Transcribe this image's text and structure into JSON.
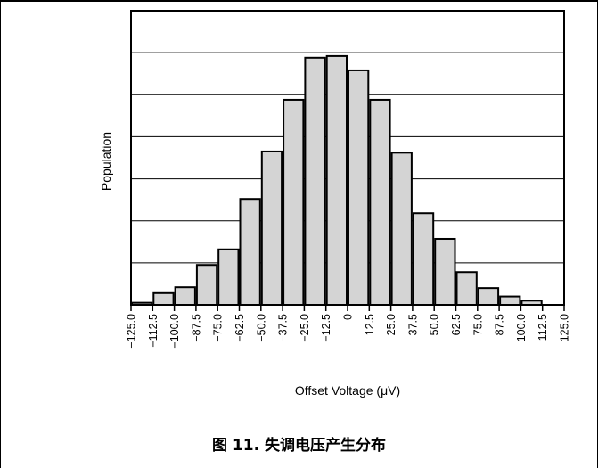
{
  "caption": "图 11. 失调电压产生分布",
  "chart_data": {
    "type": "bar",
    "title": "",
    "xlabel": "Offset Voltage (μV)",
    "ylabel": "Population",
    "xlim": [
      -125.0,
      125.0
    ],
    "ylim": [
      0,
      7
    ],
    "bin_width": 12.5,
    "x_tick_labels": [
      "-125.0",
      "-112.5",
      "-100.0",
      "-87.5",
      "-75.0",
      "-62.5",
      "-50.0",
      "-37.5",
      "-25.0",
      "-12.5",
      "0",
      "12.5",
      "25.0",
      "37.5",
      "50.0",
      "62.5",
      "75.0",
      "87.5",
      "100.0",
      "112.5",
      "125.0"
    ],
    "bins": [
      {
        "start": -125.0,
        "end": -112.5,
        "value": 0.05
      },
      {
        "start": -112.5,
        "end": -100.0,
        "value": 0.28
      },
      {
        "start": -100.0,
        "end": -87.5,
        "value": 0.42
      },
      {
        "start": -87.5,
        "end": -75.0,
        "value": 0.95
      },
      {
        "start": -75.0,
        "end": -62.5,
        "value": 1.32
      },
      {
        "start": -62.5,
        "end": -50.0,
        "value": 2.52
      },
      {
        "start": -50.0,
        "end": -37.5,
        "value": 3.65
      },
      {
        "start": -37.5,
        "end": -25.0,
        "value": 4.88
      },
      {
        "start": -25.0,
        "end": -12.5,
        "value": 5.88
      },
      {
        "start": -12.5,
        "end": 0.0,
        "value": 5.92
      },
      {
        "start": 0.0,
        "end": 12.5,
        "value": 5.58
      },
      {
        "start": 12.5,
        "end": 25.0,
        "value": 4.88
      },
      {
        "start": 25.0,
        "end": 37.5,
        "value": 3.62
      },
      {
        "start": 37.5,
        "end": 50.0,
        "value": 2.18
      },
      {
        "start": 50.0,
        "end": 62.5,
        "value": 1.57
      },
      {
        "start": 62.5,
        "end": 75.0,
        "value": 0.78
      },
      {
        "start": 75.0,
        "end": 87.5,
        "value": 0.4
      },
      {
        "start": 87.5,
        "end": 100.0,
        "value": 0.2
      },
      {
        "start": 100.0,
        "end": 112.5,
        "value": 0.1
      },
      {
        "start": 112.5,
        "end": 125.0,
        "value": 0
      }
    ],
    "grid": true,
    "bar_color": "#d4d4d4",
    "edge_color": "#000000"
  }
}
